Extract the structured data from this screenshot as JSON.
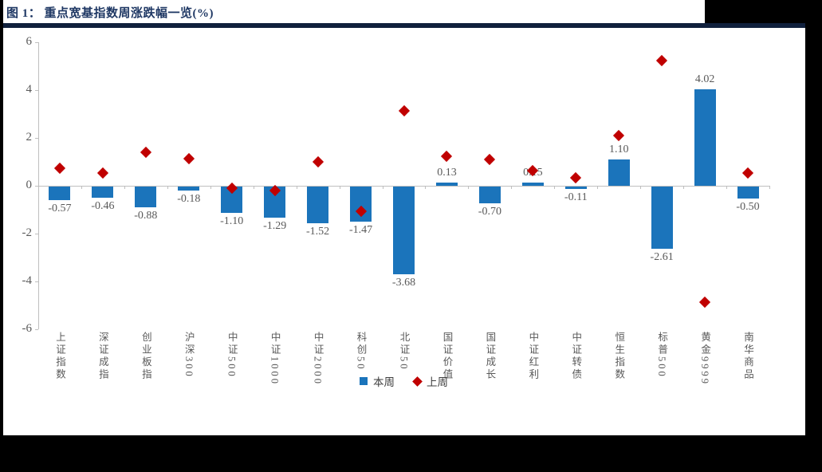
{
  "page": {
    "title": "图 1： 重点宽基指数周涨跌幅一览(%)",
    "colors": {
      "bar_blue": "#1B74BB",
      "diamond_red": "#C00000",
      "title_navy": "#1F3864",
      "divider_navy": "#10203C",
      "axis_gray": "#BFBFBF",
      "text_gray": "#595959"
    }
  },
  "legend": {
    "items": [
      {
        "marker": "square-icon",
        "color": "#1B74BB",
        "label": "本周"
      },
      {
        "marker": "diamond-icon",
        "color": "#C00000",
        "label": "上周"
      }
    ]
  },
  "chart_data": {
    "type": "bar",
    "title": "图 1： 重点宽基指数周涨跌幅一览(%)",
    "categories": [
      "上证指数",
      "深证成指",
      "创业板指",
      "沪深300",
      "中证500",
      "中证1000",
      "中证2000",
      "科创50",
      "北证50",
      "国证价值",
      "国证成长",
      "中证红利",
      "中证转债",
      "恒生指数",
      "标普500",
      "黄金9999",
      "南华商品"
    ],
    "series": [
      {
        "name": "本周",
        "type": "bar",
        "color": "#1B74BB",
        "values": [
          -0.57,
          -0.46,
          -0.88,
          -0.18,
          -1.1,
          -1.29,
          -1.52,
          -1.47,
          -3.68,
          0.13,
          -0.7,
          0.15,
          -0.11,
          1.1,
          -2.61,
          4.02,
          -0.5
        ],
        "data_labels": true
      },
      {
        "name": "上周",
        "type": "scatter-diamond",
        "color": "#C00000",
        "values": [
          0.75,
          0.55,
          1.4,
          1.15,
          -0.1,
          -0.2,
          1.0,
          -1.05,
          3.15,
          1.25,
          1.1,
          0.65,
          0.35,
          2.1,
          5.25,
          -4.85,
          0.55
        ],
        "data_labels": false
      }
    ],
    "ylabel": "",
    "xlabel": "",
    "ylim": [
      -6,
      6
    ],
    "yticks": [
      6,
      4,
      2,
      0,
      -2,
      -4,
      -6
    ],
    "grid": false,
    "legend_position": "bottom-center"
  }
}
